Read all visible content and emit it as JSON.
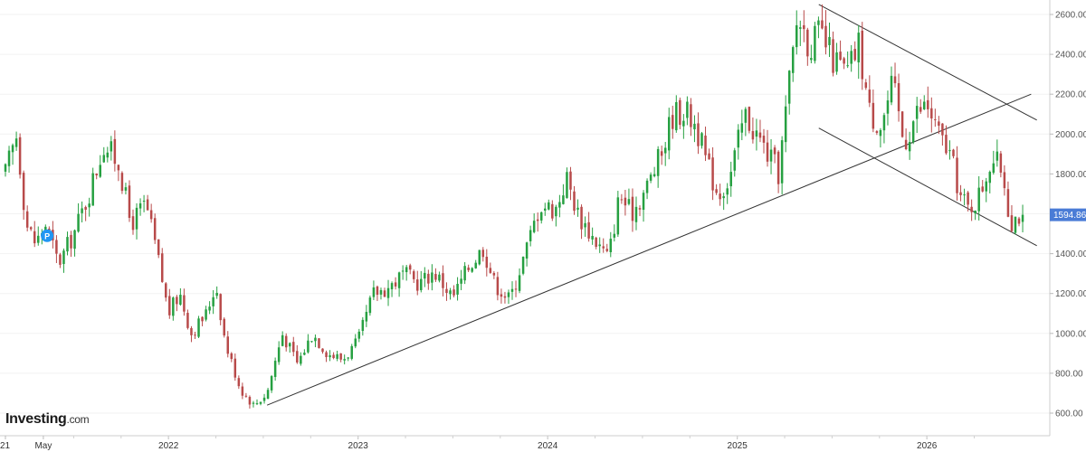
{
  "chart_data": {
    "type": "candlestick",
    "instrument": "",
    "last_price": "1594.86",
    "ylim": [
      540,
      2680
    ],
    "y_ticks": [
      "2600.00",
      "2400.00",
      "2200.00",
      "2000.00",
      "1800.00",
      "1600.00",
      "1400.00",
      "1200.00",
      "1000.00",
      "800.00",
      "600.00"
    ],
    "x_ticks": [
      {
        "label": "21",
        "t": 2021.14
      },
      {
        "label": "May",
        "t": 2021.34
      },
      {
        "label": "2022",
        "t": 2022.0
      },
      {
        "label": "2023",
        "t": 2023.0
      },
      {
        "label": "2024",
        "t": 2024.0
      },
      {
        "label": "2025",
        "t": 2025.0
      },
      {
        "label": "2026",
        "t": 2026.0
      }
    ],
    "price_path": [
      {
        "t": 2021.14,
        "v": 1800
      },
      {
        "t": 2021.2,
        "v": 2000
      },
      {
        "t": 2021.25,
        "v": 1550
      },
      {
        "t": 2021.3,
        "v": 1450
      },
      {
        "t": 2021.35,
        "v": 1550
      },
      {
        "t": 2021.42,
        "v": 1350
      },
      {
        "t": 2021.5,
        "v": 1500
      },
      {
        "t": 2021.58,
        "v": 1700
      },
      {
        "t": 2021.66,
        "v": 1950
      },
      {
        "t": 2021.74,
        "v": 1850
      },
      {
        "t": 2021.8,
        "v": 1550
      },
      {
        "t": 2021.88,
        "v": 1650
      },
      {
        "t": 2021.94,
        "v": 1400
      },
      {
        "t": 2022.0,
        "v": 1100
      },
      {
        "t": 2022.06,
        "v": 1200
      },
      {
        "t": 2022.12,
        "v": 1000
      },
      {
        "t": 2022.2,
        "v": 1100
      },
      {
        "t": 2022.25,
        "v": 1250
      },
      {
        "t": 2022.3,
        "v": 950
      },
      {
        "t": 2022.38,
        "v": 720
      },
      {
        "t": 2022.45,
        "v": 640
      },
      {
        "t": 2022.52,
        "v": 700
      },
      {
        "t": 2022.6,
        "v": 1000
      },
      {
        "t": 2022.68,
        "v": 850
      },
      {
        "t": 2022.76,
        "v": 1000
      },
      {
        "t": 2022.84,
        "v": 900
      },
      {
        "t": 2022.92,
        "v": 870
      },
      {
        "t": 2023.0,
        "v": 960
      },
      {
        "t": 2023.08,
        "v": 1200
      },
      {
        "t": 2023.16,
        "v": 1230
      },
      {
        "t": 2023.24,
        "v": 1300
      },
      {
        "t": 2023.32,
        "v": 1250
      },
      {
        "t": 2023.4,
        "v": 1310
      },
      {
        "t": 2023.5,
        "v": 1180
      },
      {
        "t": 2023.58,
        "v": 1330
      },
      {
        "t": 2023.66,
        "v": 1430
      },
      {
        "t": 2023.72,
        "v": 1250
      },
      {
        "t": 2023.8,
        "v": 1170
      },
      {
        "t": 2023.88,
        "v": 1400
      },
      {
        "t": 2023.96,
        "v": 1650
      },
      {
        "t": 2024.04,
        "v": 1620
      },
      {
        "t": 2024.1,
        "v": 1780
      },
      {
        "t": 2024.16,
        "v": 1600
      },
      {
        "t": 2024.24,
        "v": 1480
      },
      {
        "t": 2024.32,
        "v": 1380
      },
      {
        "t": 2024.38,
        "v": 1700
      },
      {
        "t": 2024.44,
        "v": 1600
      },
      {
        "t": 2024.52,
        "v": 1730
      },
      {
        "t": 2024.6,
        "v": 1900
      },
      {
        "t": 2024.66,
        "v": 2100
      },
      {
        "t": 2024.72,
        "v": 2120
      },
      {
        "t": 2024.78,
        "v": 2050
      },
      {
        "t": 2024.84,
        "v": 1850
      },
      {
        "t": 2024.9,
        "v": 1700
      },
      {
        "t": 2024.96,
        "v": 1780
      },
      {
        "t": 2025.04,
        "v": 2100
      },
      {
        "t": 2025.1,
        "v": 2000
      },
      {
        "t": 2025.16,
        "v": 1900
      },
      {
        "t": 2025.22,
        "v": 1800
      },
      {
        "t": 2025.26,
        "v": 2150
      },
      {
        "t": 2025.32,
        "v": 2600
      },
      {
        "t": 2025.38,
        "v": 2450
      },
      {
        "t": 2025.44,
        "v": 2500
      },
      {
        "t": 2025.5,
        "v": 2380
      },
      {
        "t": 2025.58,
        "v": 2300
      },
      {
        "t": 2025.64,
        "v": 2450
      },
      {
        "t": 2025.7,
        "v": 2100
      },
      {
        "t": 2025.76,
        "v": 2050
      },
      {
        "t": 2025.82,
        "v": 2250
      },
      {
        "t": 2025.88,
        "v": 1950
      },
      {
        "t": 2025.94,
        "v": 2100
      },
      {
        "t": 2026.0,
        "v": 2150
      },
      {
        "t": 2026.06,
        "v": 2000
      },
      {
        "t": 2026.12,
        "v": 1900
      },
      {
        "t": 2026.18,
        "v": 1680
      },
      {
        "t": 2026.22,
        "v": 1620
      },
      {
        "t": 2026.28,
        "v": 1700
      },
      {
        "t": 2026.34,
        "v": 1880
      },
      {
        "t": 2026.4,
        "v": 1820
      },
      {
        "t": 2026.44,
        "v": 1560
      },
      {
        "t": 2026.48,
        "v": 1594.86
      }
    ],
    "trendlines": [
      {
        "t1": 2022.52,
        "v1": 640,
        "t2": 2026.55,
        "v2": 2200
      },
      {
        "t1": 2025.43,
        "v1": 2650,
        "t2": 2026.58,
        "v2": 2070
      },
      {
        "t1": 2025.43,
        "v1": 2030,
        "t2": 2026.58,
        "v2": 1440
      }
    ],
    "marker": {
      "label": "P",
      "t": 2021.36,
      "v": 1490
    },
    "colors": {
      "up": "#26a041",
      "down": "#b84a4a",
      "price_label": "#4a7cd6",
      "marker": "#2196f3",
      "trendline": "#333333"
    }
  },
  "brand": {
    "name": "Investing",
    "suffix": ".com"
  }
}
